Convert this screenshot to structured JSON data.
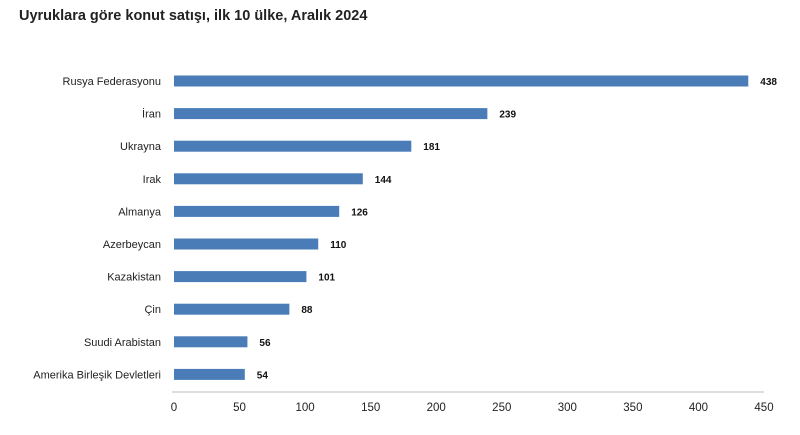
{
  "chart_data": {
    "type": "bar",
    "orientation": "horizontal",
    "title": "Uyruklara göre konut satışı, ilk 10 ülke, Aralık 2024",
    "categories": [
      "Rusya Federasyonu",
      "İran",
      "Ukrayna",
      "Irak",
      "Almanya",
      "Azerbeycan",
      "Kazakistan",
      "Çin",
      "Suudi Arabistan",
      "Amerika Birleşik Devletleri"
    ],
    "values": [
      438,
      239,
      181,
      144,
      126,
      110,
      101,
      88,
      56,
      54
    ],
    "xlim": [
      0,
      450
    ],
    "xticks": [
      0,
      50,
      100,
      150,
      200,
      250,
      300,
      350,
      400,
      450
    ],
    "grid": false,
    "bar_color": "#4a7db8",
    "data_labels": true
  }
}
